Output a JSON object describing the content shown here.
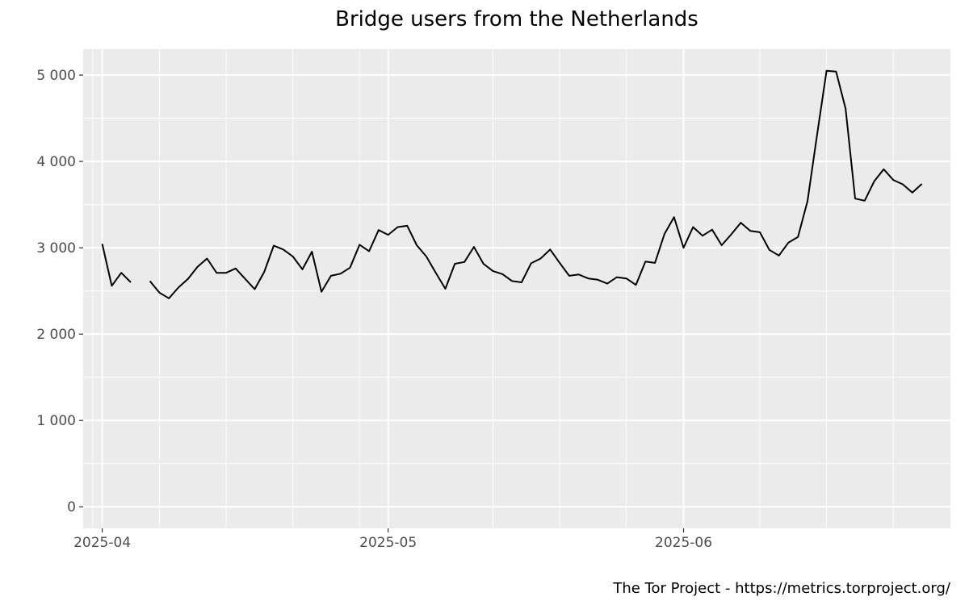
{
  "chart_data": {
    "type": "line",
    "title": "Bridge users from the Netherlands",
    "xlabel": "",
    "ylabel": "",
    "caption": "The Tor Project - https://metrics.torproject.org/",
    "ylim": [
      -250,
      5300
    ],
    "xlim": [
      "2025-03-30",
      "2025-06-29"
    ],
    "yticks": [
      0,
      1000,
      2000,
      3000,
      4000,
      5000
    ],
    "ytick_labels": [
      "0",
      "1 000",
      "2 000",
      "3 000",
      "4 000",
      "5 000"
    ],
    "xticks": [
      "2025-04-01",
      "2025-05-01",
      "2025-06-01"
    ],
    "xtick_labels": [
      "2025-04",
      "2025-05",
      "2025-06"
    ],
    "grid": true,
    "line_color": "#000000",
    "panel_color": "#ebebeb",
    "series": [
      {
        "x": [
          "2025-04-01",
          "2025-04-02",
          "2025-04-03",
          "2025-04-04",
          "2025-04-05",
          "2025-04-06",
          "2025-04-07",
          "2025-04-08",
          "2025-04-09",
          "2025-04-10",
          "2025-04-11",
          "2025-04-12",
          "2025-04-13",
          "2025-04-14",
          "2025-04-15",
          "2025-04-16",
          "2025-04-17",
          "2025-04-18",
          "2025-04-19",
          "2025-04-20",
          "2025-04-21",
          "2025-04-22",
          "2025-04-23",
          "2025-04-24",
          "2025-04-25",
          "2025-04-26",
          "2025-04-27",
          "2025-04-28",
          "2025-04-29",
          "2025-04-30",
          "2025-05-01",
          "2025-05-02",
          "2025-05-03",
          "2025-05-04",
          "2025-05-05",
          "2025-05-06",
          "2025-05-07",
          "2025-05-08",
          "2025-05-09",
          "2025-05-10",
          "2025-05-11",
          "2025-05-12",
          "2025-05-13",
          "2025-05-14",
          "2025-05-15",
          "2025-05-16",
          "2025-05-17",
          "2025-05-18",
          "2025-05-19",
          "2025-05-20",
          "2025-05-21",
          "2025-05-22",
          "2025-05-23",
          "2025-05-24",
          "2025-05-25",
          "2025-05-26",
          "2025-05-27",
          "2025-05-28",
          "2025-05-29",
          "2025-05-30",
          "2025-05-31",
          "2025-06-01",
          "2025-06-02",
          "2025-06-03",
          "2025-06-04",
          "2025-06-05",
          "2025-06-06",
          "2025-06-07",
          "2025-06-08",
          "2025-06-09",
          "2025-06-10",
          "2025-06-11",
          "2025-06-12",
          "2025-06-13",
          "2025-06-14",
          "2025-06-15",
          "2025-06-16",
          "2025-06-17",
          "2025-06-18",
          "2025-06-19",
          "2025-06-20",
          "2025-06-21",
          "2025-06-22",
          "2025-06-23",
          "2025-06-24",
          "2025-06-25",
          "2025-06-26"
        ],
        "values": [
          3045,
          2560,
          2710,
          2600,
          null,
          2615,
          2480,
          2415,
          2540,
          2640,
          2780,
          2875,
          2710,
          2710,
          2760,
          2640,
          2520,
          2720,
          3025,
          2980,
          2900,
          2750,
          2955,
          2490,
          2675,
          2700,
          2770,
          3035,
          2960,
          3205,
          3150,
          3240,
          3255,
          3030,
          2900,
          2710,
          2525,
          2815,
          2835,
          3010,
          2815,
          2730,
          2695,
          2615,
          2600,
          2820,
          2875,
          2980,
          2825,
          2675,
          2690,
          2645,
          2630,
          2585,
          2660,
          2645,
          2570,
          2840,
          2825,
          3160,
          3355,
          3000,
          3240,
          3140,
          3210,
          3030,
          3155,
          3290,
          3195,
          3180,
          2975,
          2910,
          3060,
          3125,
          3540,
          4305,
          5050,
          5040,
          4610,
          3570,
          3545,
          3770,
          3910,
          3785,
          3735,
          3640,
          3740
        ]
      }
    ]
  }
}
